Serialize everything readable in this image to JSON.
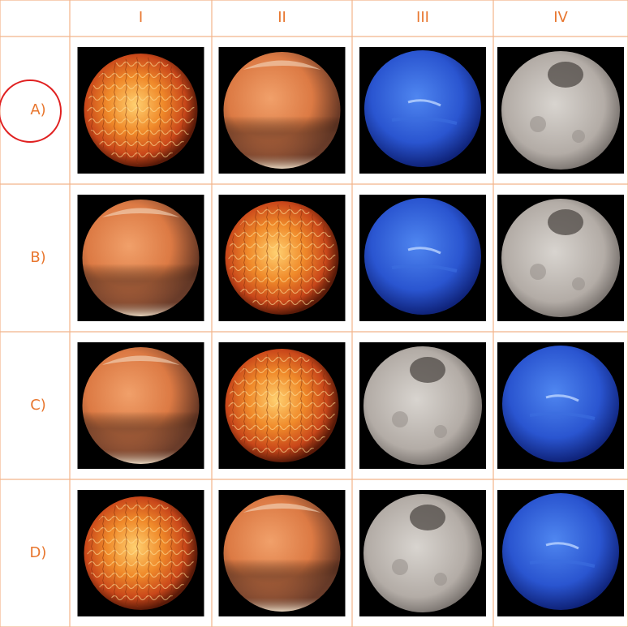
{
  "table": {
    "header": [
      "I",
      "II",
      "III",
      "IV"
    ],
    "rows": [
      "A)",
      "B)",
      "C)",
      "D)"
    ]
  }
}
